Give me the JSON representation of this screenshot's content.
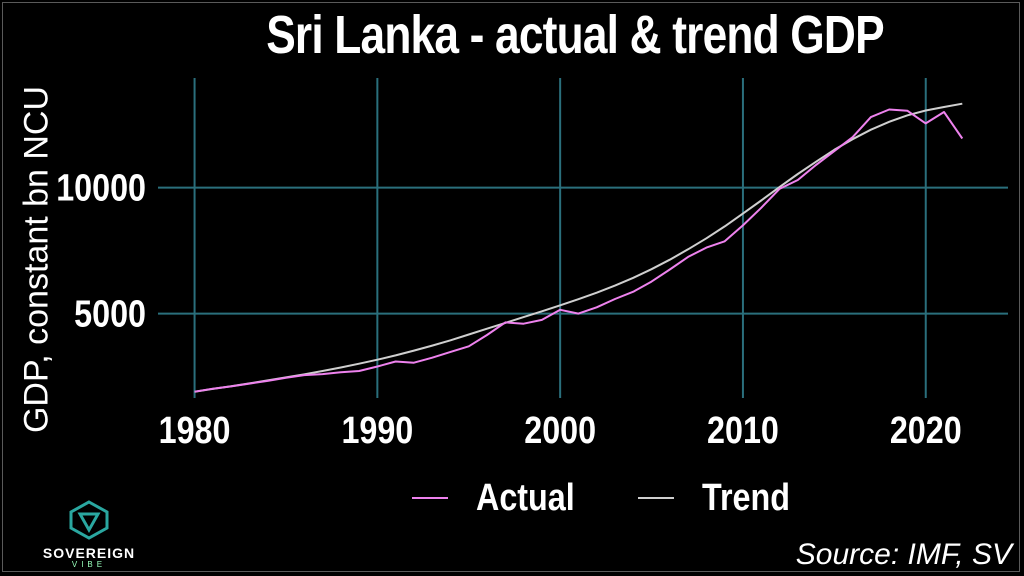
{
  "chart_data": {
    "type": "line",
    "title": "Sri Lanka - actual & trend GDP",
    "ylabel": "GDP, constant bn NCU",
    "xlim": [
      1978,
      2024.5
    ],
    "ylim": [
      1650,
      14350
    ],
    "xticks": [
      1980,
      1990,
      2000,
      2010,
      2020
    ],
    "yticks": [
      5000,
      10000
    ],
    "grid": true,
    "legend_position": "bottom",
    "x": [
      1980,
      1981,
      1982,
      1983,
      1984,
      1985,
      1986,
      1987,
      1988,
      1989,
      1990,
      1991,
      1992,
      1993,
      1994,
      1995,
      1996,
      1997,
      1998,
      1999,
      2000,
      2001,
      2002,
      2003,
      2004,
      2005,
      2006,
      2007,
      2008,
      2009,
      2010,
      2011,
      2012,
      2013,
      2014,
      2015,
      2016,
      2017,
      2018,
      2019,
      2020,
      2021,
      2022
    ],
    "series": [
      {
        "name": "Actual",
        "color": "#ee82ee",
        "values": [
          1900,
          2020,
          2110,
          2220,
          2330,
          2450,
          2560,
          2600,
          2670,
          2720,
          2900,
          3100,
          3050,
          3250,
          3480,
          3700,
          4150,
          4650,
          4600,
          4750,
          5150,
          5000,
          5250,
          5580,
          5870,
          6270,
          6750,
          7250,
          7620,
          7870,
          8500,
          9200,
          9950,
          10300,
          10900,
          11450,
          12000,
          12800,
          13100,
          13050,
          12550,
          13000,
          11950
        ]
      },
      {
        "name": "Trend",
        "color": "#cfcfcf",
        "values": [
          1900,
          2010,
          2120,
          2230,
          2350,
          2470,
          2590,
          2720,
          2860,
          3010,
          3170,
          3340,
          3530,
          3730,
          3940,
          4170,
          4400,
          4630,
          4860,
          5090,
          5330,
          5570,
          5830,
          6110,
          6420,
          6760,
          7140,
          7550,
          7990,
          8460,
          8970,
          9490,
          10020,
          10540,
          11030,
          11500,
          11920,
          12300,
          12610,
          12870,
          13060,
          13200,
          13330
        ]
      }
    ]
  },
  "source": "Source: IMF, SV",
  "logo": {
    "name": "SOVEREIGN",
    "sub": "VIBE"
  },
  "colors": {
    "background": "#000000",
    "grid": "#2a6f7c",
    "text": "#ffffff"
  }
}
